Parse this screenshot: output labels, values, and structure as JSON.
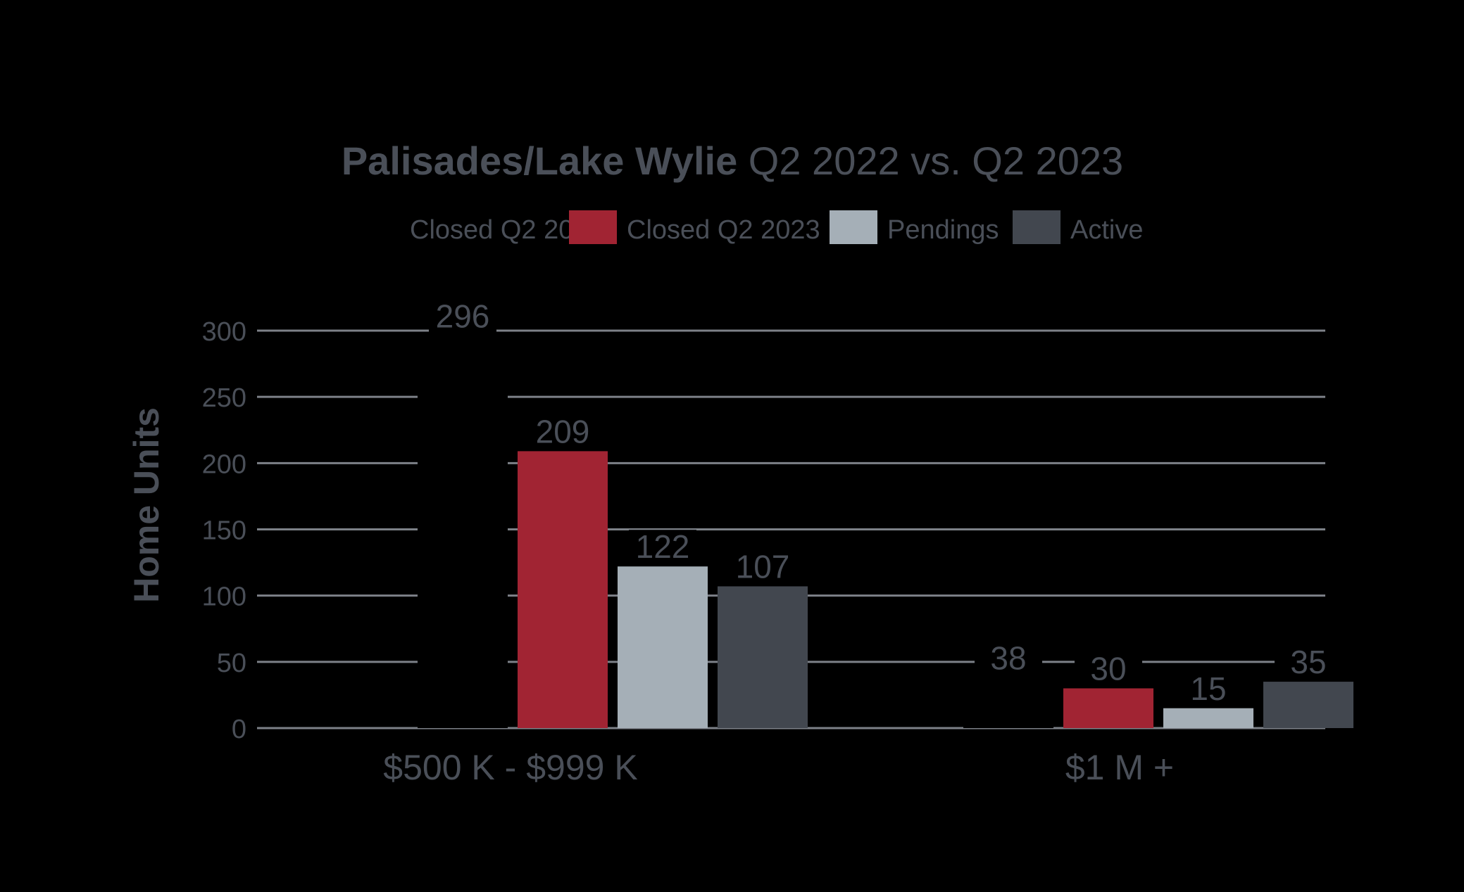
{
  "chart_data": {
    "type": "bar",
    "title_bold": "Palisades/Lake Wylie",
    "title_rest": " Q2 2022 vs. Q2 2023",
    "ylabel": "Home Units",
    "ylim": [
      0,
      300
    ],
    "yticks": [
      0,
      50,
      100,
      150,
      200,
      250,
      300
    ],
    "grid": true,
    "legend_position": "top",
    "categories": [
      "$500 K - $999 K",
      "$1 M +"
    ],
    "series": [
      {
        "name": "Closed Q2 2022",
        "values": [
          296,
          38
        ],
        "color": "#000000"
      },
      {
        "name": "Closed Q2 2023",
        "values": [
          209,
          30
        ],
        "color": "#A12433"
      },
      {
        "name": "Pendings",
        "values": [
          122,
          15
        ],
        "color": "#A5AFB7"
      },
      {
        "name": "Active",
        "values": [
          107,
          35
        ],
        "color": "#42474F"
      }
    ],
    "colors": {
      "text": "#4A4F58",
      "grid": "#7D8188",
      "background": "#000000"
    }
  }
}
